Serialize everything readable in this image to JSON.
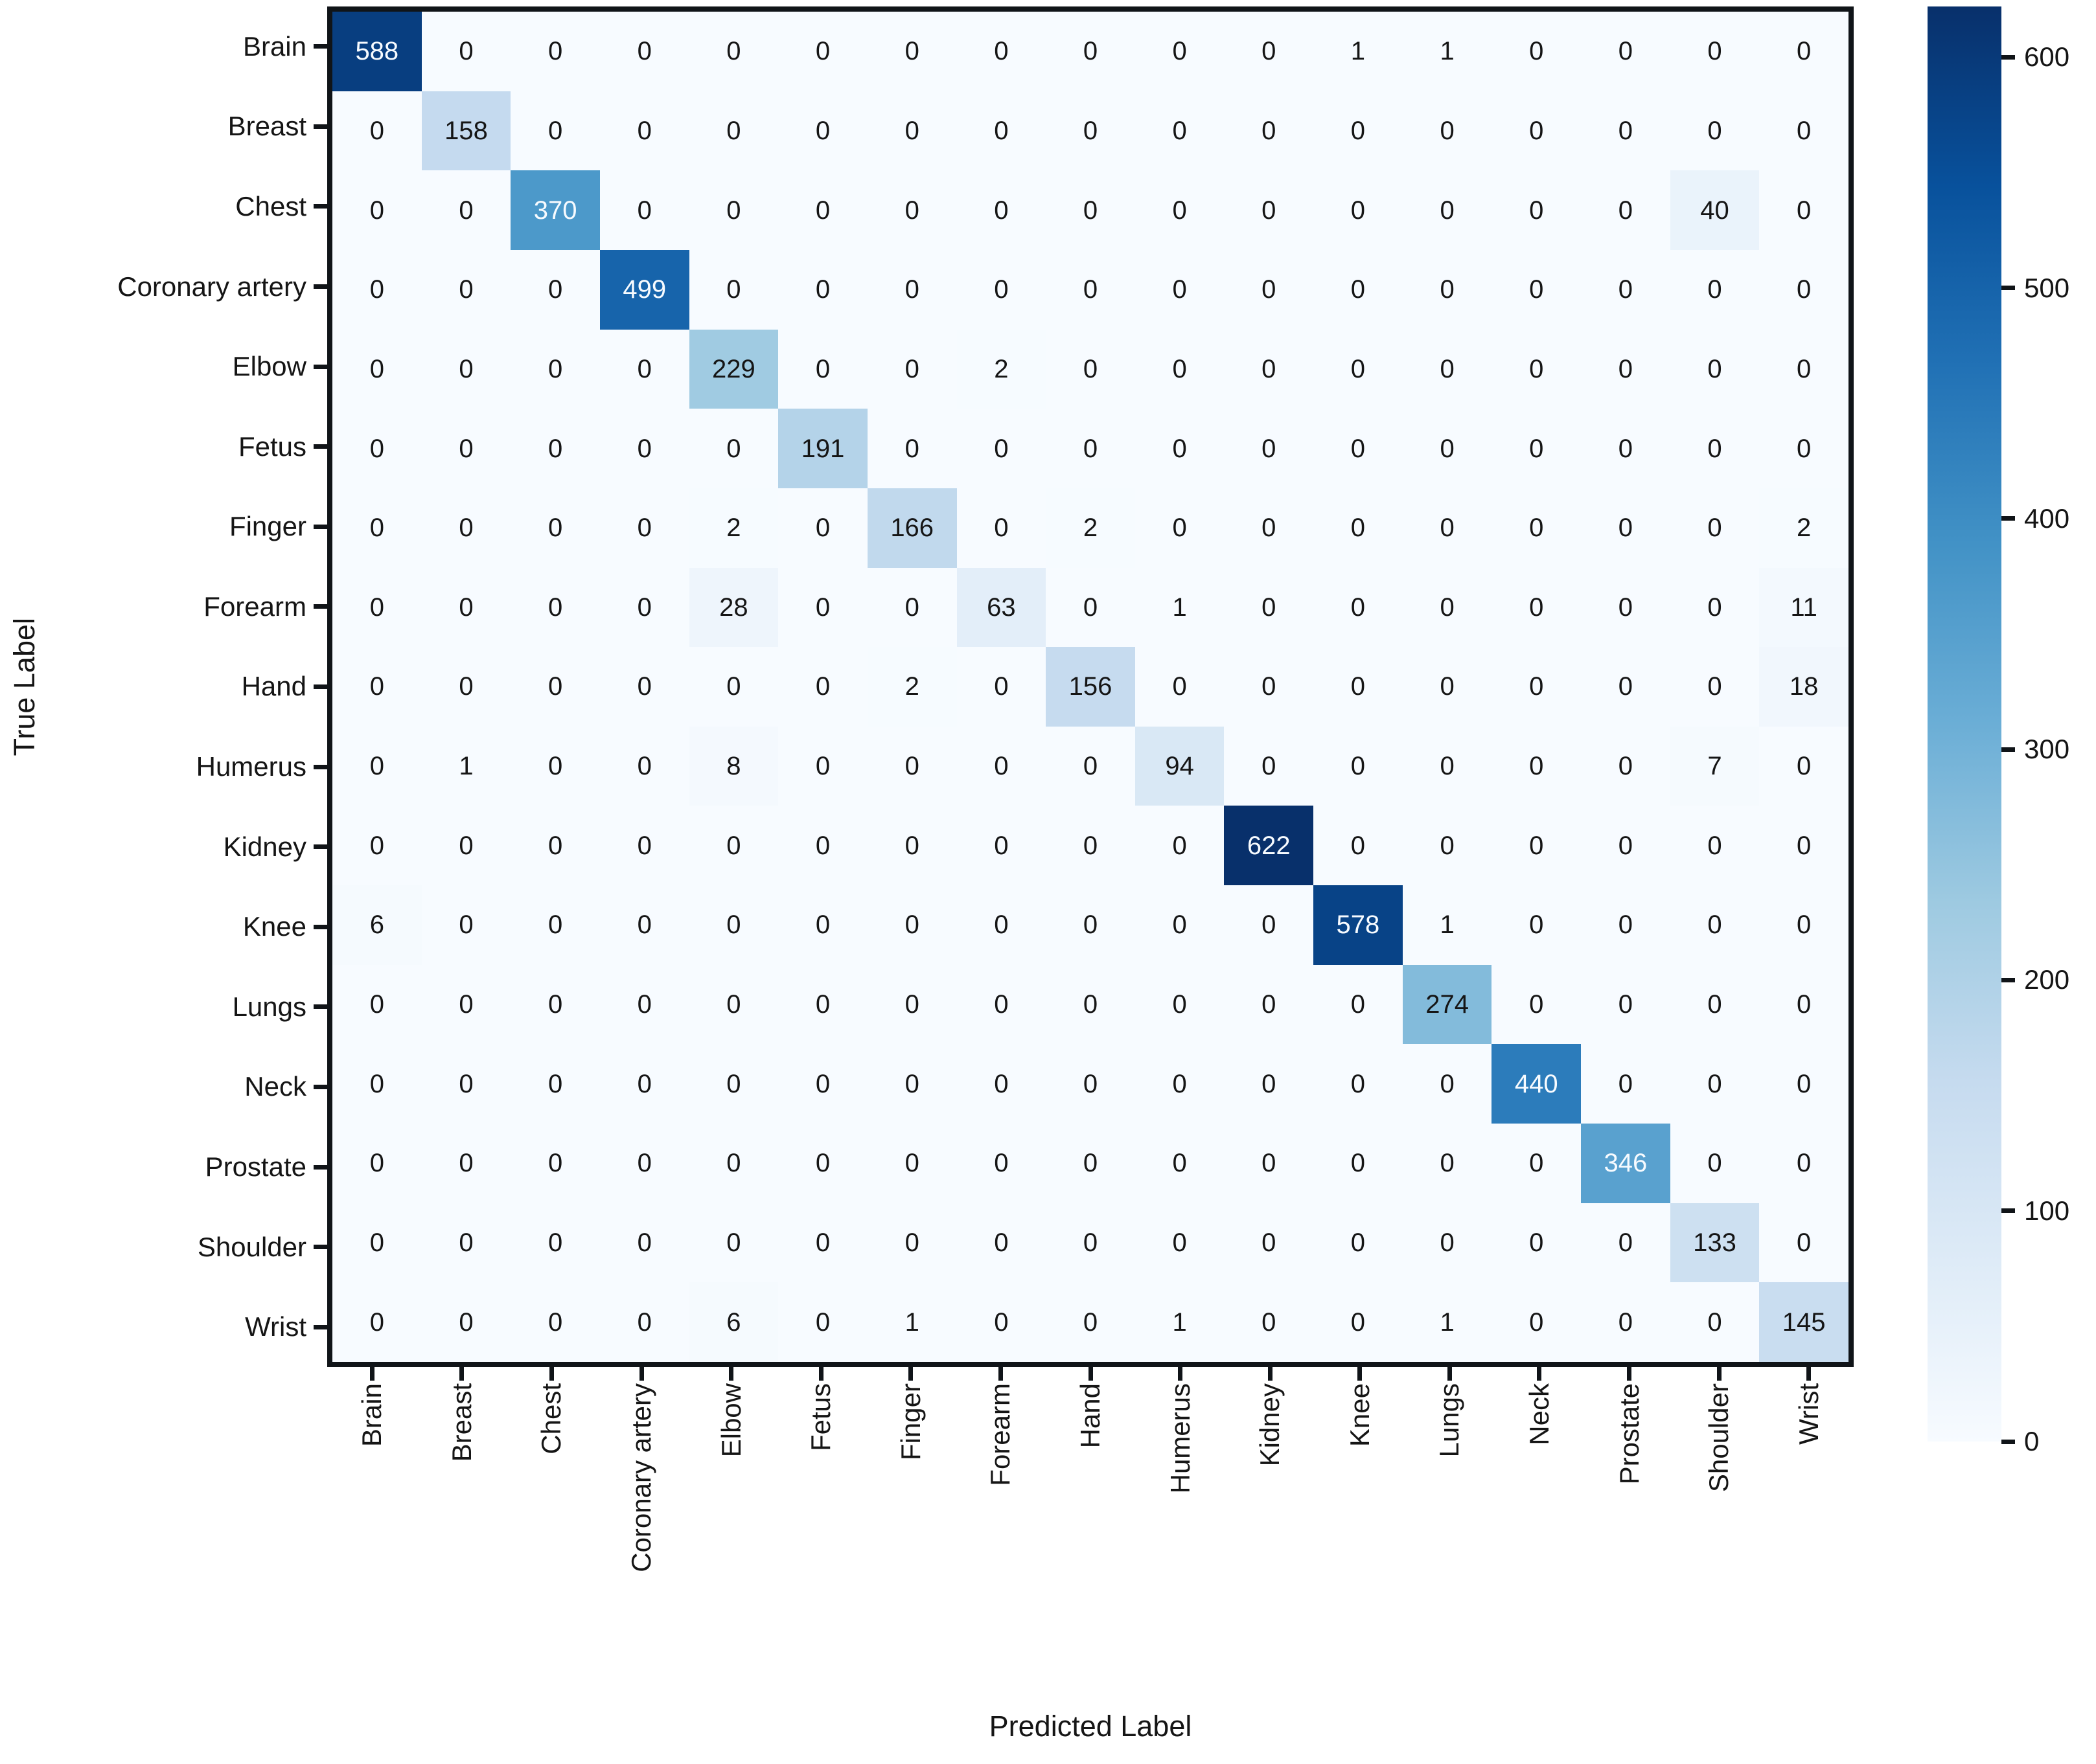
{
  "chart_data": {
    "type": "heatmap",
    "title": "",
    "xlabel": "Predicted Label",
    "ylabel": "True Label",
    "labels": [
      "Brain",
      "Breast",
      "Chest",
      "Coronary artery",
      "Elbow",
      "Fetus",
      "Finger",
      "Forearm",
      "Hand",
      "Humerus",
      "Kidney",
      "Knee",
      "Lungs",
      "Neck",
      "Prostate",
      "Shoulder",
      "Wrist"
    ],
    "matrix": [
      [
        588,
        0,
        0,
        0,
        0,
        0,
        0,
        0,
        0,
        0,
        0,
        1,
        1,
        0,
        0,
        0,
        0
      ],
      [
        0,
        158,
        0,
        0,
        0,
        0,
        0,
        0,
        0,
        0,
        0,
        0,
        0,
        0,
        0,
        0,
        0
      ],
      [
        0,
        0,
        370,
        0,
        0,
        0,
        0,
        0,
        0,
        0,
        0,
        0,
        0,
        0,
        0,
        40,
        0
      ],
      [
        0,
        0,
        0,
        499,
        0,
        0,
        0,
        0,
        0,
        0,
        0,
        0,
        0,
        0,
        0,
        0,
        0
      ],
      [
        0,
        0,
        0,
        0,
        229,
        0,
        0,
        2,
        0,
        0,
        0,
        0,
        0,
        0,
        0,
        0,
        0
      ],
      [
        0,
        0,
        0,
        0,
        0,
        191,
        0,
        0,
        0,
        0,
        0,
        0,
        0,
        0,
        0,
        0,
        0
      ],
      [
        0,
        0,
        0,
        0,
        2,
        0,
        166,
        0,
        2,
        0,
        0,
        0,
        0,
        0,
        0,
        0,
        2
      ],
      [
        0,
        0,
        0,
        0,
        28,
        0,
        0,
        63,
        0,
        1,
        0,
        0,
        0,
        0,
        0,
        0,
        11
      ],
      [
        0,
        0,
        0,
        0,
        0,
        0,
        2,
        0,
        156,
        0,
        0,
        0,
        0,
        0,
        0,
        0,
        18
      ],
      [
        0,
        1,
        0,
        0,
        8,
        0,
        0,
        0,
        0,
        94,
        0,
        0,
        0,
        0,
        0,
        7,
        0
      ],
      [
        0,
        0,
        0,
        0,
        0,
        0,
        0,
        0,
        0,
        0,
        622,
        0,
        0,
        0,
        0,
        0,
        0
      ],
      [
        6,
        0,
        0,
        0,
        0,
        0,
        0,
        0,
        0,
        0,
        0,
        578,
        1,
        0,
        0,
        0,
        0
      ],
      [
        0,
        0,
        0,
        0,
        0,
        0,
        0,
        0,
        0,
        0,
        0,
        0,
        274,
        0,
        0,
        0,
        0
      ],
      [
        0,
        0,
        0,
        0,
        0,
        0,
        0,
        0,
        0,
        0,
        0,
        0,
        0,
        440,
        0,
        0,
        0
      ],
      [
        0,
        0,
        0,
        0,
        0,
        0,
        0,
        0,
        0,
        0,
        0,
        0,
        0,
        0,
        346,
        0,
        0
      ],
      [
        0,
        0,
        0,
        0,
        0,
        0,
        0,
        0,
        0,
        0,
        0,
        0,
        0,
        0,
        0,
        133,
        0
      ],
      [
        0,
        0,
        0,
        0,
        6,
        0,
        1,
        0,
        0,
        1,
        0,
        0,
        1,
        0,
        0,
        0,
        145
      ]
    ],
    "colormap": "Blues",
    "vmin": 0,
    "vmax": 622,
    "annotation_white_text_threshold": 311,
    "colorbar_ticks": [
      0,
      100,
      200,
      300,
      400,
      500,
      600
    ],
    "legend_position": "right-colorbar",
    "grid": false,
    "colors": {
      "min_color": "#f7fbff",
      "max_color": "#08306b",
      "dark_text": "#151515",
      "light_text": "#f7fbff",
      "axis_color": "#101418"
    }
  }
}
